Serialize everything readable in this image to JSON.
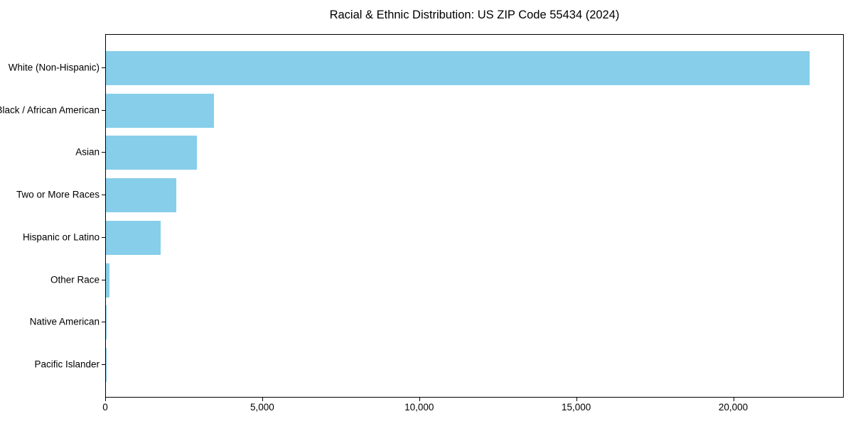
{
  "chart_data": {
    "type": "bar",
    "orientation": "horizontal",
    "title": "Racial & Ethnic Distribution: US ZIP Code 55434 (2024)",
    "categories": [
      "White (Non-Hispanic)",
      "Black / African American",
      "Asian",
      "Two or More Races",
      "Hispanic or Latino",
      "Other Race",
      "Native American",
      "Pacific Islander"
    ],
    "values": [
      22400,
      3450,
      2900,
      2250,
      1750,
      110,
      30,
      10
    ],
    "bar_color": "#87CEEB",
    "xlabel": "",
    "ylabel": "",
    "xlim": [
      0,
      23520
    ],
    "x_ticks": [
      0,
      5000,
      10000,
      15000,
      20000
    ],
    "x_tick_labels": [
      "0",
      "5,000",
      "10,000",
      "15,000",
      "20,000"
    ],
    "grid": false,
    "legend": null,
    "background_color": "#ffffff",
    "text_color": "#000000"
  }
}
